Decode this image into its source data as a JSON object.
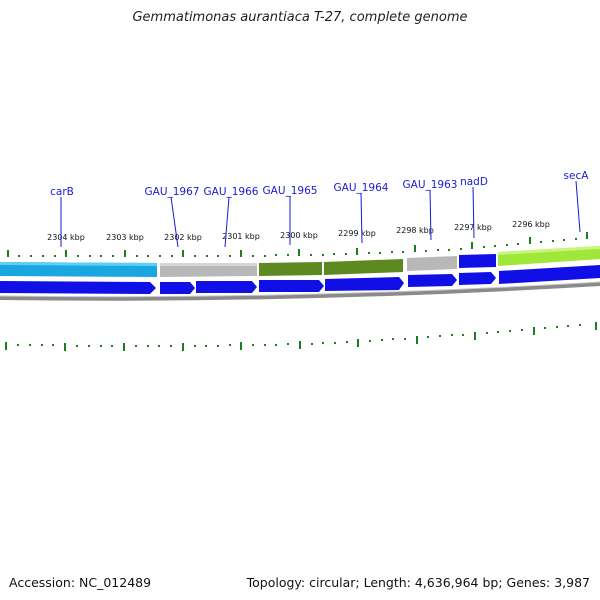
{
  "title": "Gemmatimonas aurantiaca T-27, complete genome",
  "footer": {
    "accession": "Accession: NC_012489",
    "topology": "Topology: circular; Length: 4,636,964 bp; Genes: 3,987"
  },
  "colors": {
    "gene_label": "#1a1ad6",
    "tick": "#1e7d1e",
    "cds": "#1010e6",
    "backbone": "#808080"
  },
  "kbp_labels": [
    "2304 kbp",
    "2303 kbp",
    "2302 kbp",
    "2301 kbp",
    "2300 kbp",
    "2299 kbp",
    "2298 kbp",
    "2297 kbp",
    "2296 kbp"
  ],
  "gene_labels": [
    "carB",
    "GAU_1967",
    "GAU_1966",
    "GAU_1965",
    "GAU_1964",
    "GAU_1963",
    "nadD",
    "secA"
  ]
}
